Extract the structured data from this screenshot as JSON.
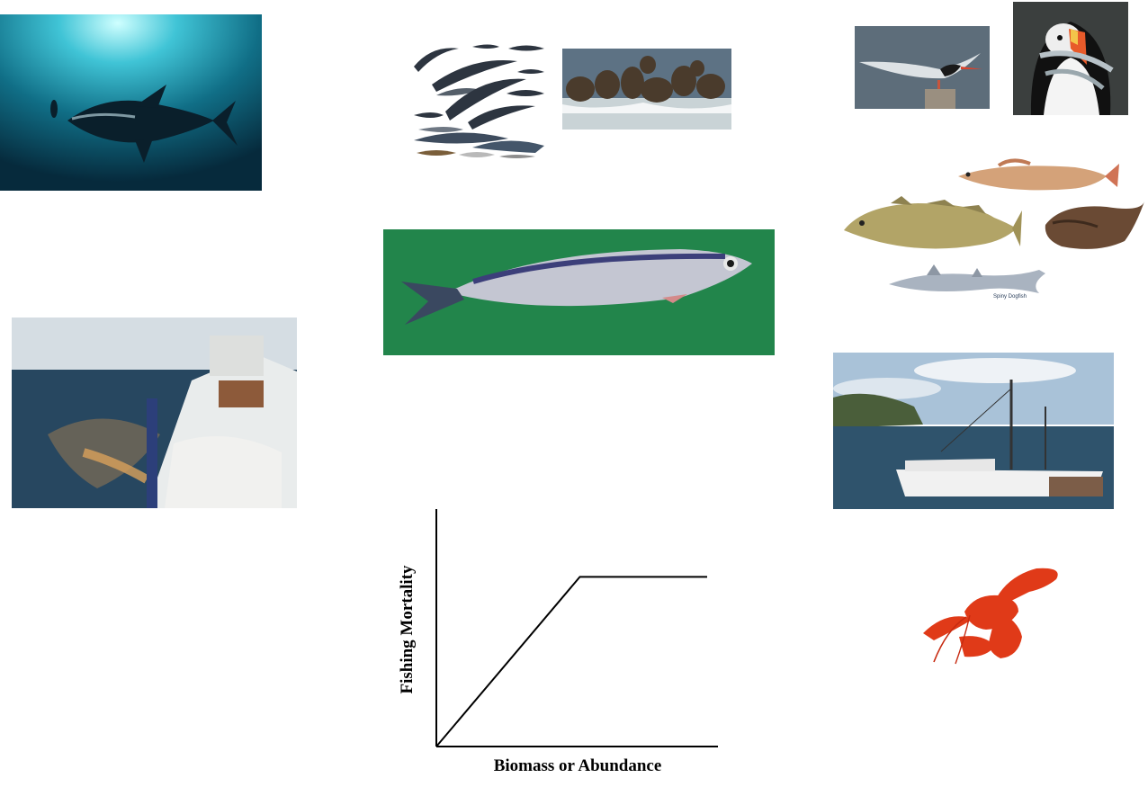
{
  "images": [
    {
      "id": "tuna",
      "subject": "bluefin tuna underwater"
    },
    {
      "id": "whales",
      "subject": "whale species chart"
    },
    {
      "id": "seals",
      "subject": "seals on rocks"
    },
    {
      "id": "tern",
      "subject": "tern on post"
    },
    {
      "id": "puffin",
      "subject": "puffin with fish"
    },
    {
      "id": "groundfish",
      "subject": "hake, cod, monkfish, spiny dogfish"
    },
    {
      "id": "trawler",
      "subject": "trawler deck with net"
    },
    {
      "id": "herring",
      "subject": "herring on green background"
    },
    {
      "id": "boat",
      "subject": "fishing boat in harbor"
    },
    {
      "id": "lobster",
      "subject": "red lobster"
    }
  ],
  "groundfish_label": "Spiny Dogfish",
  "chart_data": {
    "type": "line",
    "xlabel": "Biomass or Abundance",
    "ylabel": "Fishing Mortality",
    "series": [
      {
        "x": [
          0,
          0.53,
          1.0
        ],
        "y": [
          0,
          1.0,
          1.0
        ]
      }
    ],
    "xlim": [
      0,
      1
    ],
    "ylim": [
      0,
      1.4
    ],
    "grid": false
  }
}
